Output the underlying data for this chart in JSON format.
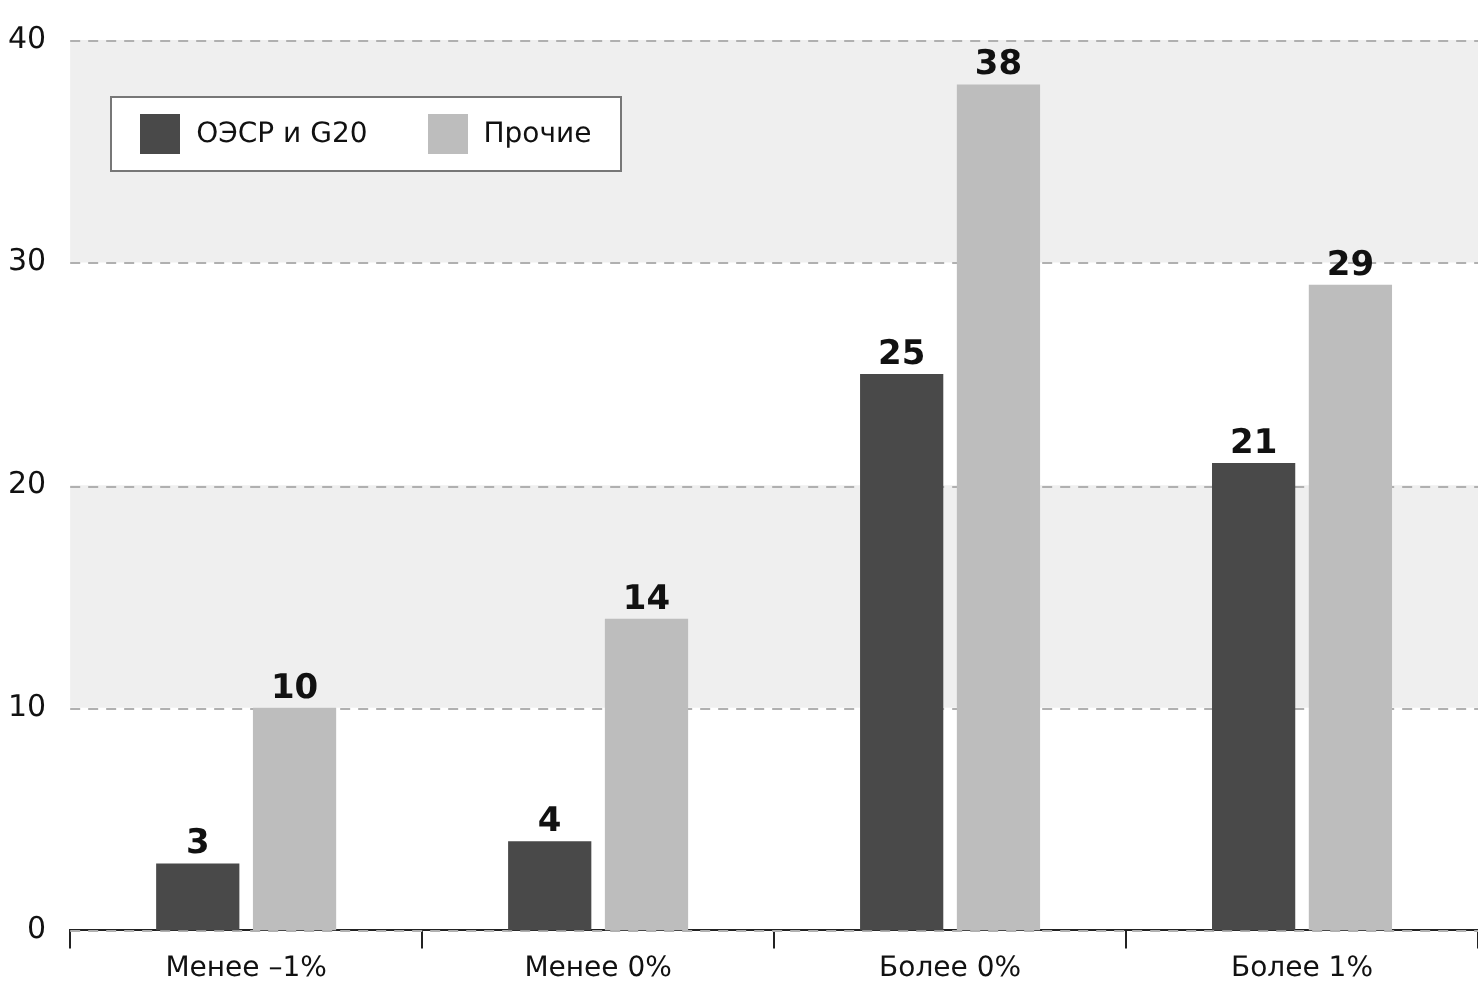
{
  "chart_data": {
    "type": "bar",
    "categories": [
      "Менее –1%",
      "Менее 0%",
      "Более 0%",
      "Более 1%"
    ],
    "series": [
      {
        "name": "ОЭСР и G20",
        "color": "#494949",
        "values": [
          3,
          4,
          25,
          21
        ]
      },
      {
        "name": "Прочие",
        "color": "#bdbdbd",
        "values": [
          10,
          14,
          38,
          29
        ]
      }
    ],
    "ylim": [
      0,
      40
    ],
    "yticks": [
      0,
      10,
      20,
      30,
      40
    ],
    "grid": "y",
    "legend": "top left",
    "data_labels": true,
    "bands": [
      {
        "axis": "y",
        "from": 10,
        "to": 20,
        "color": "#efefef"
      },
      {
        "axis": "y",
        "from": 30,
        "to": 40,
        "color": "#efefef"
      }
    ]
  }
}
